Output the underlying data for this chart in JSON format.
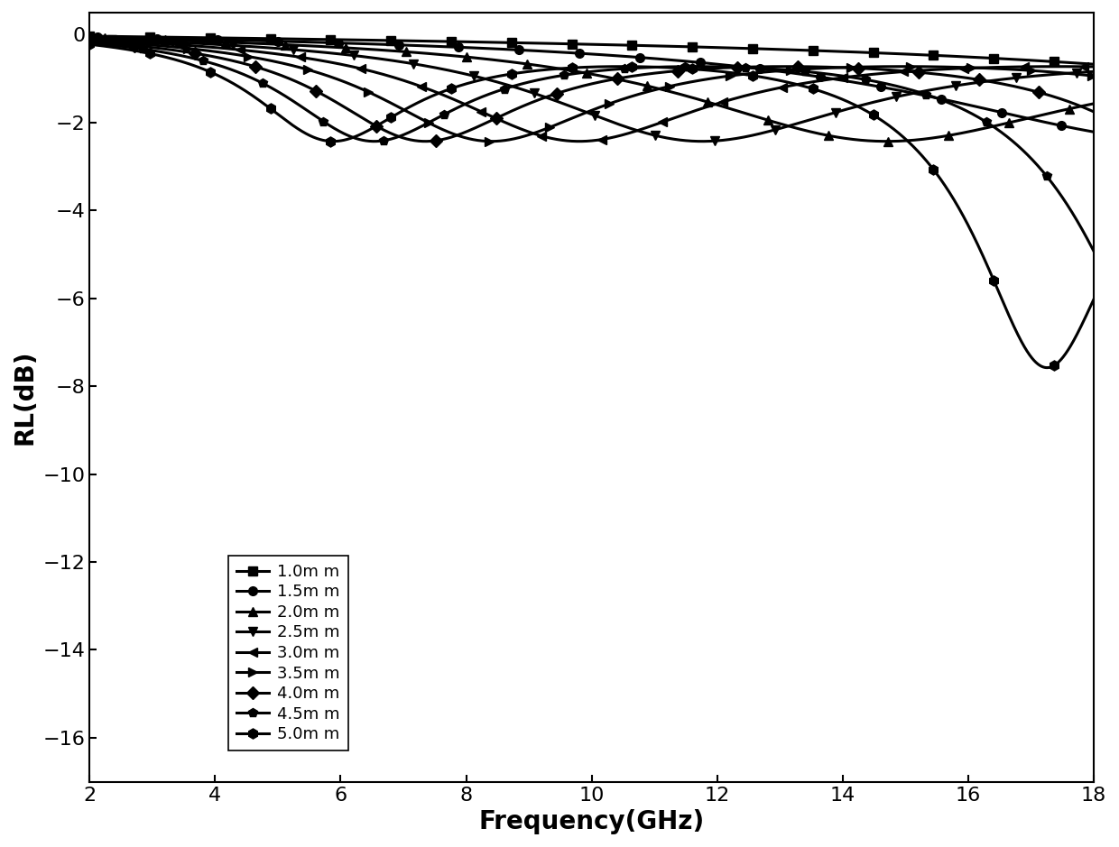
{
  "title": "",
  "xlabel": "Frequency(GHz)",
  "ylabel": "RL(dB)",
  "xlim": [
    2,
    18
  ],
  "ylim": [
    -17,
    0.5
  ],
  "yticks": [
    0,
    -2,
    -4,
    -6,
    -8,
    -10,
    -12,
    -14,
    -16
  ],
  "xticks": [
    2,
    4,
    6,
    8,
    10,
    12,
    14,
    16,
    18
  ],
  "freq_start": 2,
  "freq_end": 18,
  "freq_points": 2000,
  "thicknesses_mm": [
    1.0,
    1.5,
    2.0,
    2.5,
    3.0,
    3.5,
    4.0,
    4.5,
    5.0
  ],
  "markers": [
    "s",
    "o",
    "^",
    "v",
    "<",
    ">",
    "D",
    "p",
    "h"
  ],
  "marker_sizes": [
    7,
    7,
    7,
    7,
    7,
    7,
    7,
    7,
    8
  ],
  "line_color": "#000000",
  "line_width": 2.2,
  "marker_every": 120,
  "legend_labels": [
    "1.0m m",
    "1.5m m",
    "2.0m m",
    "2.5m m",
    "3.0m m",
    "3.5m m",
    "4.0m m",
    "4.5m m",
    "5.0m m"
  ],
  "legend_fontsize": 13,
  "tick_fontsize": 16,
  "label_fontsize": 20,
  "background_color": "#ffffff",
  "er_real": 6.5,
  "er_imag": 0.15,
  "mu_real": 1.05,
  "mu_imag": 0.05
}
